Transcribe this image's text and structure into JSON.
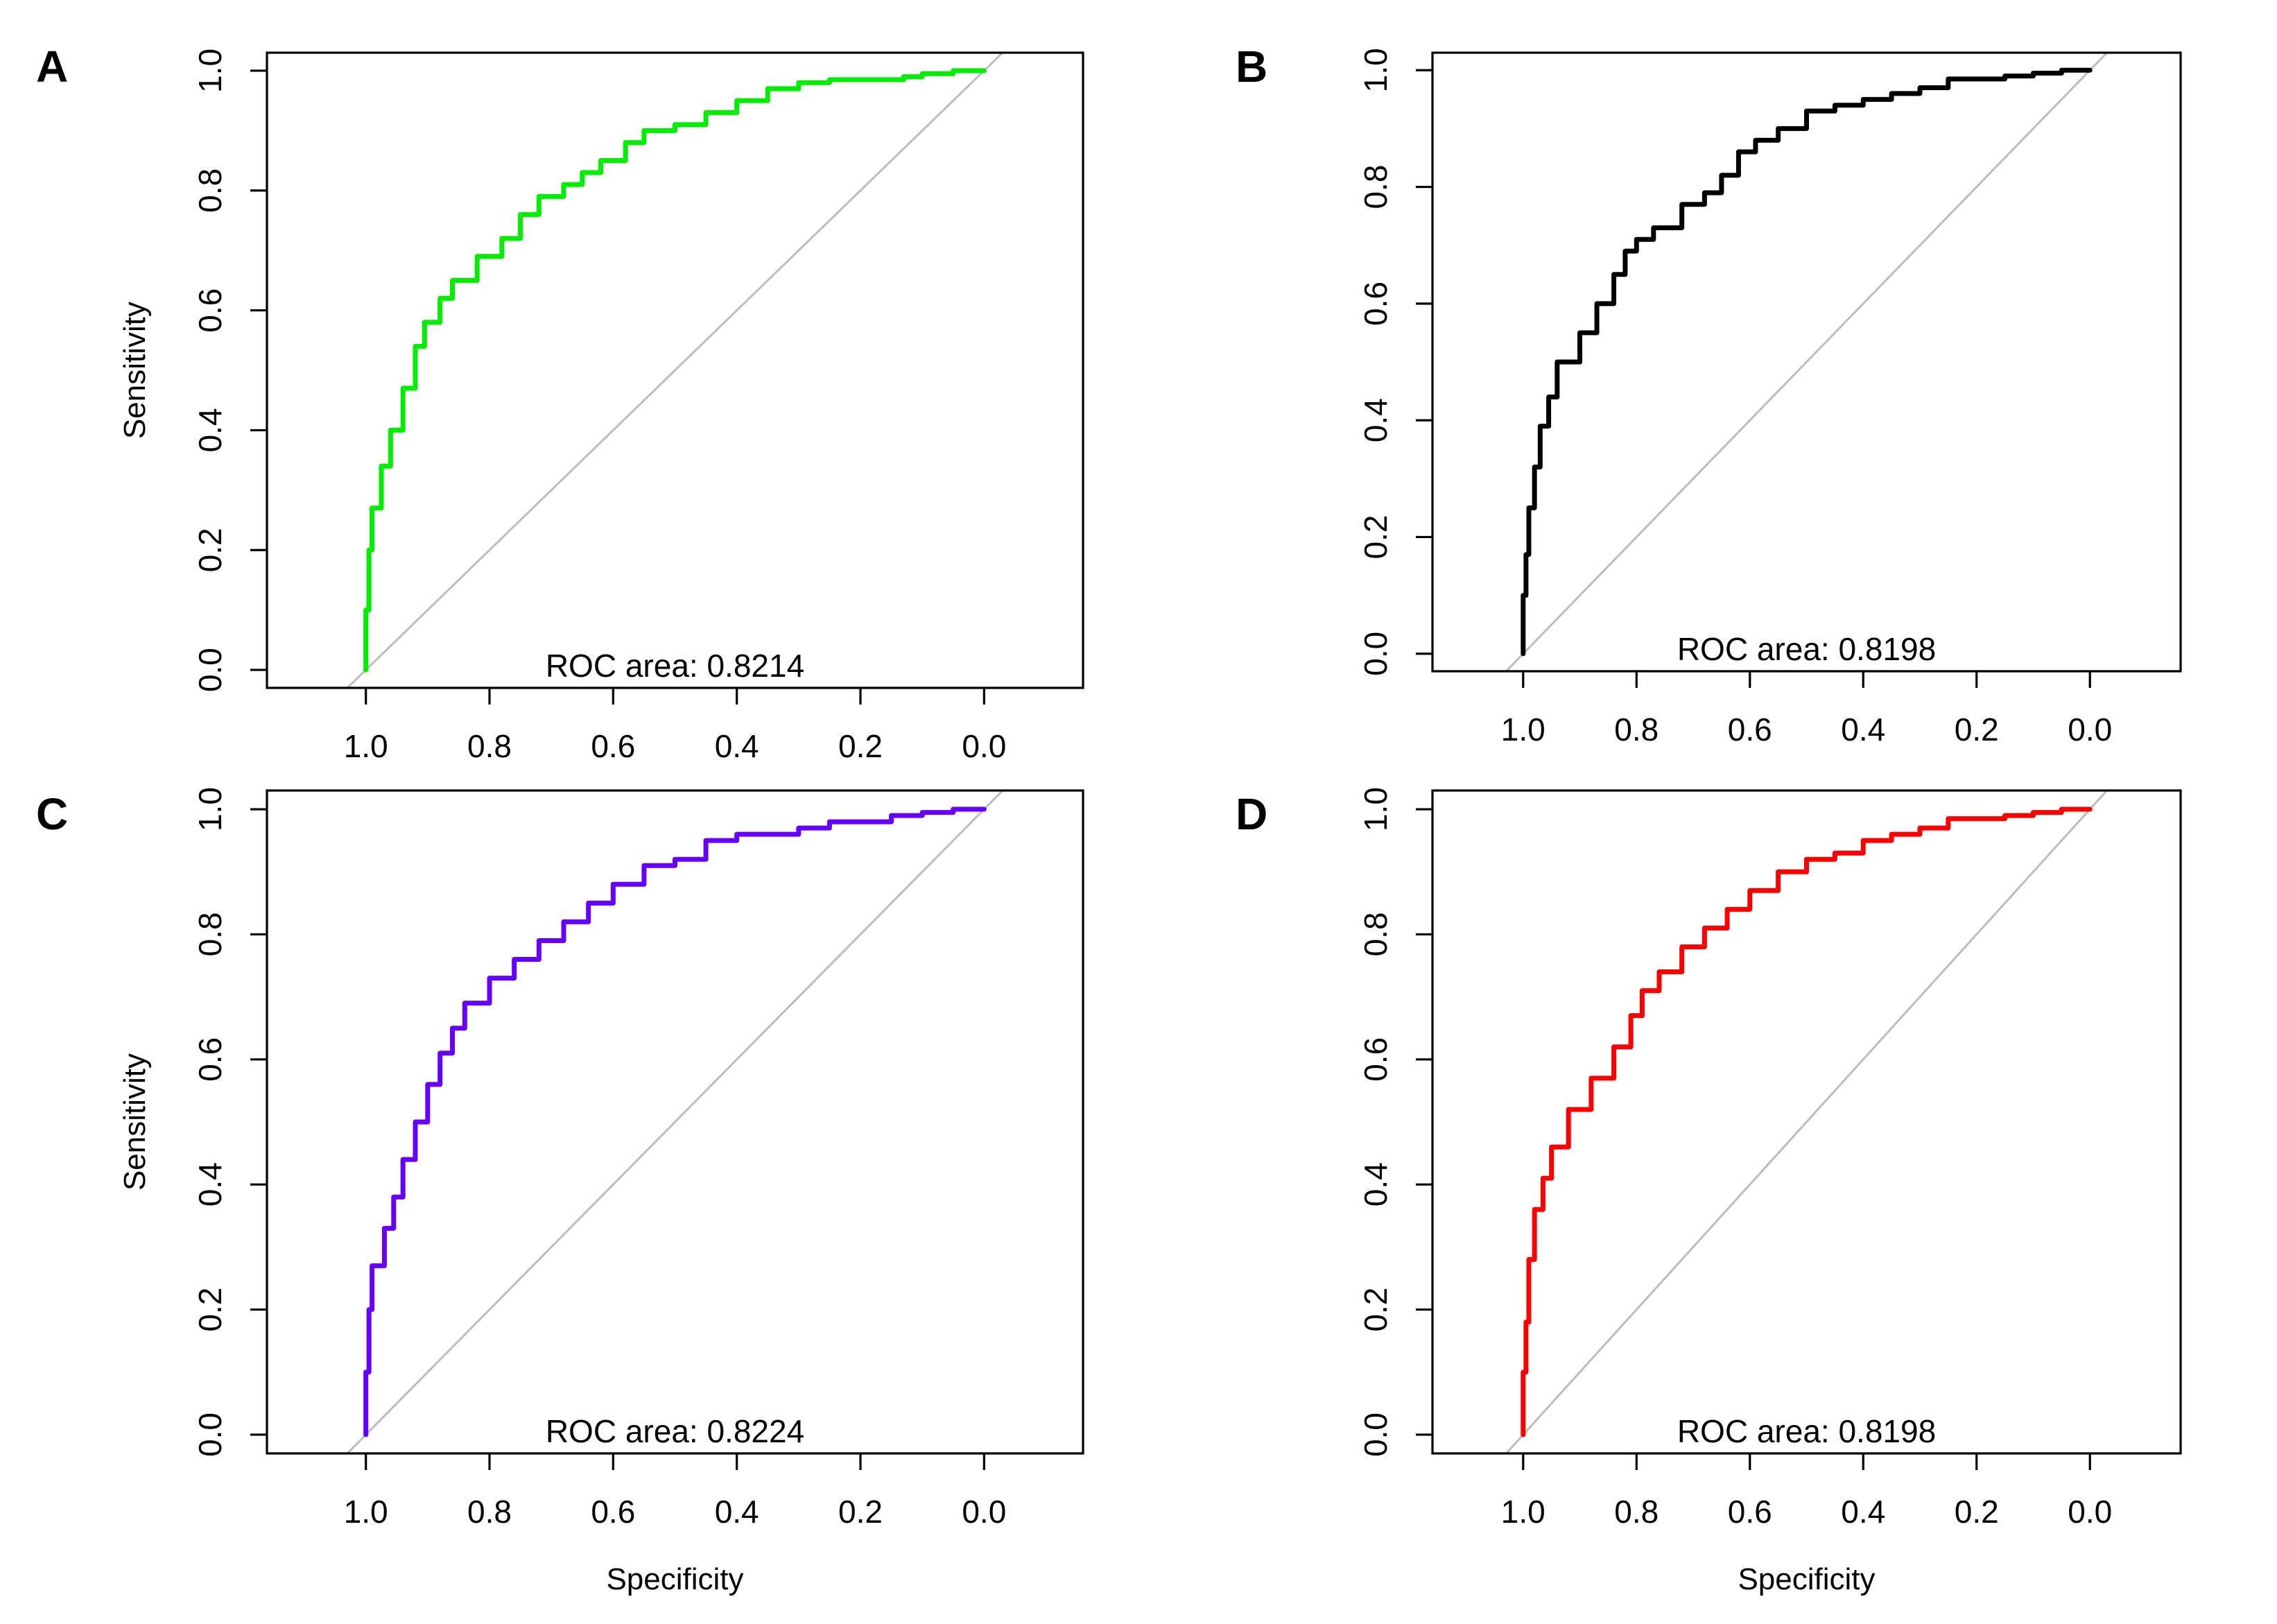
{
  "figure": {
    "x_axis_title": "Specificity",
    "y_axis_title": "Sensitivity",
    "auc_prefix": "ROC area: "
  },
  "chart_data": [
    {
      "type": "line",
      "panel": "A",
      "color": "#00ee00",
      "auc": "0.8214",
      "ylabel": "Sensitivity",
      "xlabel": "",
      "xlim": [
        1.16,
        -0.16
      ],
      "ylim": [
        -0.03,
        1.03
      ],
      "x_ticks": [
        "1.0",
        "0.8",
        "0.6",
        "0.4",
        "0.2",
        "0.0"
      ],
      "y_ticks": [
        "0.0",
        "0.2",
        "0.4",
        "0.6",
        "0.8",
        "1.0"
      ],
      "points": [
        [
          1.0,
          0.0
        ],
        [
          0.995,
          0.1
        ],
        [
          0.99,
          0.2
        ],
        [
          0.975,
          0.27
        ],
        [
          0.96,
          0.34
        ],
        [
          0.94,
          0.4
        ],
        [
          0.92,
          0.47
        ],
        [
          0.905,
          0.54
        ],
        [
          0.88,
          0.58
        ],
        [
          0.86,
          0.62
        ],
        [
          0.82,
          0.65
        ],
        [
          0.78,
          0.69
        ],
        [
          0.75,
          0.72
        ],
        [
          0.72,
          0.76
        ],
        [
          0.68,
          0.79
        ],
        [
          0.65,
          0.81
        ],
        [
          0.62,
          0.83
        ],
        [
          0.58,
          0.85
        ],
        [
          0.55,
          0.88
        ],
        [
          0.5,
          0.9
        ],
        [
          0.45,
          0.91
        ],
        [
          0.4,
          0.93
        ],
        [
          0.35,
          0.95
        ],
        [
          0.3,
          0.97
        ],
        [
          0.25,
          0.98
        ],
        [
          0.13,
          0.985
        ],
        [
          0.1,
          0.99
        ],
        [
          0.05,
          0.995
        ],
        [
          0.0,
          1.0
        ]
      ]
    },
    {
      "type": "line",
      "panel": "B",
      "color": "#000000",
      "auc": "0.8198",
      "ylabel": "",
      "xlabel": "",
      "xlim": [
        1.16,
        -0.16
      ],
      "ylim": [
        -0.03,
        1.03
      ],
      "x_ticks": [
        "1.0",
        "0.8",
        "0.6",
        "0.4",
        "0.2",
        "0.0"
      ],
      "y_ticks": [
        "0.0",
        "0.2",
        "0.4",
        "0.6",
        "0.8",
        "1.0"
      ],
      "points": [
        [
          1.0,
          0.0
        ],
        [
          0.995,
          0.1
        ],
        [
          0.99,
          0.17
        ],
        [
          0.98,
          0.25
        ],
        [
          0.97,
          0.32
        ],
        [
          0.955,
          0.39
        ],
        [
          0.94,
          0.44
        ],
        [
          0.9,
          0.5
        ],
        [
          0.87,
          0.55
        ],
        [
          0.84,
          0.6
        ],
        [
          0.82,
          0.65
        ],
        [
          0.8,
          0.69
        ],
        [
          0.77,
          0.71
        ],
        [
          0.72,
          0.73
        ],
        [
          0.68,
          0.77
        ],
        [
          0.65,
          0.79
        ],
        [
          0.62,
          0.82
        ],
        [
          0.59,
          0.86
        ],
        [
          0.55,
          0.88
        ],
        [
          0.5,
          0.9
        ],
        [
          0.45,
          0.93
        ],
        [
          0.4,
          0.94
        ],
        [
          0.35,
          0.95
        ],
        [
          0.3,
          0.96
        ],
        [
          0.25,
          0.97
        ],
        [
          0.15,
          0.985
        ],
        [
          0.1,
          0.99
        ],
        [
          0.05,
          0.995
        ],
        [
          0.0,
          1.0
        ]
      ]
    },
    {
      "type": "line",
      "panel": "C",
      "color": "#6600ff",
      "auc": "0.8224",
      "ylabel": "Sensitivity",
      "xlabel": "Specificity",
      "xlim": [
        1.16,
        -0.16
      ],
      "ylim": [
        -0.03,
        1.03
      ],
      "x_ticks": [
        "1.0",
        "0.8",
        "0.6",
        "0.4",
        "0.2",
        "0.0"
      ],
      "y_ticks": [
        "0.0",
        "0.2",
        "0.4",
        "0.6",
        "0.8",
        "1.0"
      ],
      "points": [
        [
          1.0,
          0.0
        ],
        [
          0.995,
          0.1
        ],
        [
          0.99,
          0.2
        ],
        [
          0.97,
          0.27
        ],
        [
          0.955,
          0.33
        ],
        [
          0.94,
          0.38
        ],
        [
          0.92,
          0.44
        ],
        [
          0.9,
          0.5
        ],
        [
          0.88,
          0.56
        ],
        [
          0.86,
          0.61
        ],
        [
          0.84,
          0.65
        ],
        [
          0.8,
          0.69
        ],
        [
          0.76,
          0.73
        ],
        [
          0.72,
          0.76
        ],
        [
          0.68,
          0.79
        ],
        [
          0.64,
          0.82
        ],
        [
          0.6,
          0.85
        ],
        [
          0.55,
          0.88
        ],
        [
          0.5,
          0.91
        ],
        [
          0.45,
          0.92
        ],
        [
          0.4,
          0.95
        ],
        [
          0.3,
          0.96
        ],
        [
          0.25,
          0.97
        ],
        [
          0.15,
          0.98
        ],
        [
          0.1,
          0.99
        ],
        [
          0.05,
          0.995
        ],
        [
          0.0,
          1.0
        ]
      ]
    },
    {
      "type": "line",
      "panel": "D",
      "color": "#ff0000",
      "auc": "0.8198",
      "ylabel": "",
      "xlabel": "Specificity",
      "xlim": [
        1.16,
        -0.16
      ],
      "ylim": [
        -0.03,
        1.03
      ],
      "x_ticks": [
        "1.0",
        "0.8",
        "0.6",
        "0.4",
        "0.2",
        "0.0"
      ],
      "y_ticks": [
        "0.0",
        "0.2",
        "0.4",
        "0.6",
        "0.8",
        "1.0"
      ],
      "points": [
        [
          1.0,
          0.0
        ],
        [
          0.995,
          0.1
        ],
        [
          0.99,
          0.18
        ],
        [
          0.98,
          0.28
        ],
        [
          0.965,
          0.36
        ],
        [
          0.95,
          0.41
        ],
        [
          0.92,
          0.46
        ],
        [
          0.88,
          0.52
        ],
        [
          0.84,
          0.57
        ],
        [
          0.81,
          0.62
        ],
        [
          0.79,
          0.67
        ],
        [
          0.76,
          0.71
        ],
        [
          0.72,
          0.74
        ],
        [
          0.68,
          0.78
        ],
        [
          0.64,
          0.81
        ],
        [
          0.6,
          0.84
        ],
        [
          0.55,
          0.87
        ],
        [
          0.5,
          0.9
        ],
        [
          0.45,
          0.92
        ],
        [
          0.4,
          0.93
        ],
        [
          0.35,
          0.95
        ],
        [
          0.3,
          0.96
        ],
        [
          0.25,
          0.97
        ],
        [
          0.15,
          0.985
        ],
        [
          0.1,
          0.99
        ],
        [
          0.05,
          0.995
        ],
        [
          0.0,
          1.0
        ]
      ]
    }
  ]
}
